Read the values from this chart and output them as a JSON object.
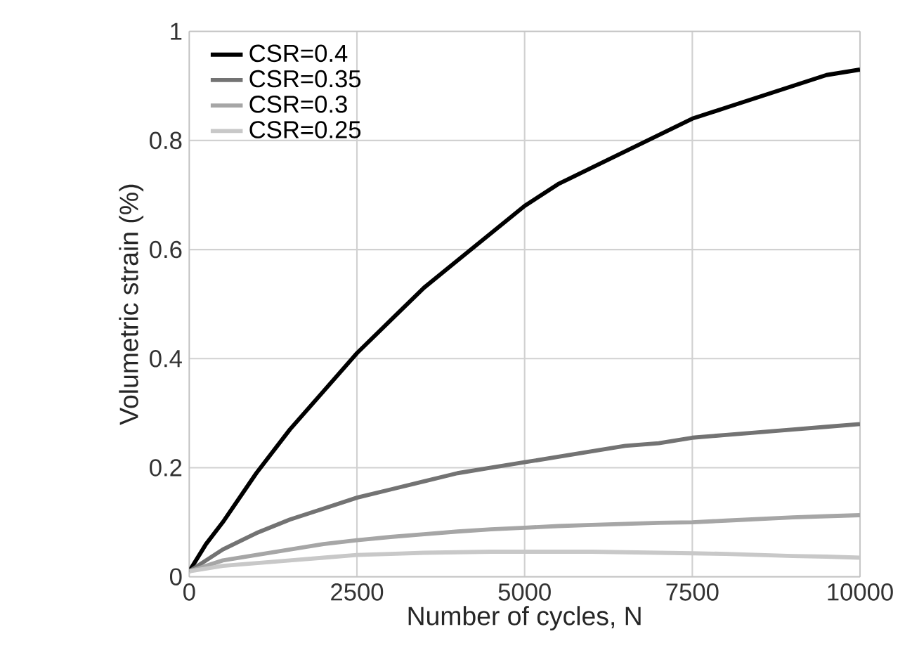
{
  "chart_data": {
    "type": "line",
    "xlabel": "Number of cycles, N",
    "ylabel": "Volumetric strain (%)",
    "x": [
      0,
      250,
      500,
      1000,
      1500,
      2000,
      2500,
      3000,
      3500,
      4000,
      4500,
      5000,
      5500,
      6000,
      6500,
      7000,
      7500,
      8000,
      8500,
      9000,
      9500,
      10000
    ],
    "series": [
      {
        "name": "CSR=0.4",
        "color": "#000000",
        "values": [
          0.01,
          0.06,
          0.1,
          0.19,
          0.27,
          0.34,
          0.41,
          0.47,
          0.53,
          0.58,
          0.63,
          0.68,
          0.72,
          0.75,
          0.78,
          0.81,
          0.84,
          0.86,
          0.88,
          0.9,
          0.92,
          0.93
        ]
      },
      {
        "name": "CSR=0.35",
        "color": "#737373",
        "values": [
          0.01,
          0.03,
          0.05,
          0.08,
          0.105,
          0.125,
          0.145,
          0.16,
          0.175,
          0.19,
          0.2,
          0.21,
          0.22,
          0.23,
          0.24,
          0.245,
          0.255,
          0.26,
          0.265,
          0.27,
          0.275,
          0.28
        ]
      },
      {
        "name": "CSR=0.3",
        "color": "#a6a6a6",
        "values": [
          0.01,
          0.02,
          0.03,
          0.04,
          0.05,
          0.06,
          0.067,
          0.073,
          0.078,
          0.083,
          0.087,
          0.09,
          0.093,
          0.095,
          0.097,
          0.099,
          0.1,
          0.103,
          0.106,
          0.109,
          0.111,
          0.113
        ]
      },
      {
        "name": "CSR=0.25",
        "color": "#c8c8c8",
        "values": [
          0.01,
          0.015,
          0.02,
          0.025,
          0.03,
          0.035,
          0.04,
          0.042,
          0.044,
          0.045,
          0.046,
          0.046,
          0.046,
          0.046,
          0.045,
          0.044,
          0.043,
          0.042,
          0.04,
          0.038,
          0.037,
          0.035
        ]
      }
    ],
    "xlim": [
      0,
      10000
    ],
    "xticks": [
      0,
      2500,
      5000,
      7500,
      10000
    ],
    "ylim": [
      0,
      1
    ],
    "yticks": [
      0,
      0.2,
      0.4,
      0.6,
      0.8,
      1
    ],
    "grid": true,
    "legend": "top left",
    "marker": "none",
    "line_style": "solid"
  }
}
